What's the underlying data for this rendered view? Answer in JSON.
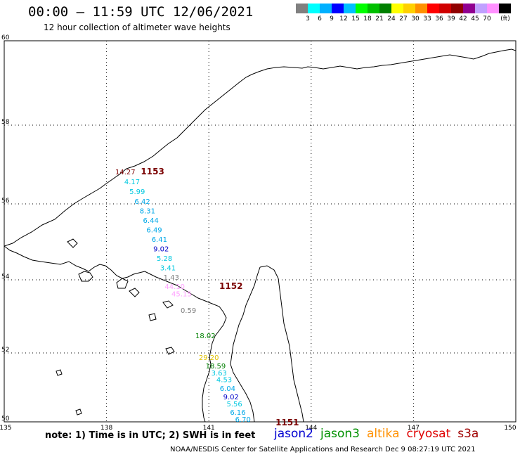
{
  "header": {
    "title": "00:00 – 11:59 UTC 12/06/2021",
    "subtitle": "12 hour collection of altimeter wave heights"
  },
  "scale": {
    "unit": "(ft)",
    "bins": [
      {
        "label": "",
        "color": "#808080"
      },
      {
        "label": "3",
        "color": "#00ffff"
      },
      {
        "label": "6",
        "color": "#00b0ff"
      },
      {
        "label": "9",
        "color": "#0000ff"
      },
      {
        "label": "12",
        "color": "#00bfff"
      },
      {
        "label": "15",
        "color": "#00ff00"
      },
      {
        "label": "18",
        "color": "#00c000"
      },
      {
        "label": "21",
        "color": "#008000"
      },
      {
        "label": "24",
        "color": "#ffff00"
      },
      {
        "label": "27",
        "color": "#ffd000"
      },
      {
        "label": "30",
        "color": "#ff9000"
      },
      {
        "label": "33",
        "color": "#ff0000"
      },
      {
        "label": "36",
        "color": "#d00000"
      },
      {
        "label": "39",
        "color": "#900000"
      },
      {
        "label": "42",
        "color": "#900090"
      },
      {
        "label": "45",
        "color": "#c0a0ff"
      },
      {
        "label": "70",
        "color": "#ff90ff"
      },
      {
        "label": "",
        "color": "#000000"
      }
    ]
  },
  "map": {
    "lon_ticks": [
      "135",
      "138",
      "141",
      "144",
      "147",
      "150"
    ],
    "lat_ticks": [
      "50",
      "52",
      "54",
      "56",
      "58",
      "60"
    ],
    "pass_labels": [
      {
        "text": "1153",
        "lon": 139.35,
        "lat": 56.75
      },
      {
        "text": "1152",
        "lon": 141.65,
        "lat": 53.75
      },
      {
        "text": "1151",
        "lon": 143.3,
        "lat": 49.9
      }
    ],
    "observations": [
      {
        "value": "14.27",
        "lon": 138.55,
        "lat": 56.75,
        "color": "#7a0000"
      },
      {
        "value": "4.17",
        "lon": 138.75,
        "lat": 56.5,
        "color": "#00c8e0"
      },
      {
        "value": "5.99",
        "lon": 138.9,
        "lat": 56.25,
        "color": "#00c8e0"
      },
      {
        "value": "6.42",
        "lon": 139.05,
        "lat": 56.0,
        "color": "#00a8e8"
      },
      {
        "value": "8.31",
        "lon": 139.2,
        "lat": 55.75,
        "color": "#00a8e8"
      },
      {
        "value": "6.44",
        "lon": 139.3,
        "lat": 55.5,
        "color": "#00a8e8"
      },
      {
        "value": "6.49",
        "lon": 139.4,
        "lat": 55.25,
        "color": "#00a8e8"
      },
      {
        "value": "6.41",
        "lon": 139.55,
        "lat": 55.0,
        "color": "#00a8e8"
      },
      {
        "value": "9.02",
        "lon": 139.6,
        "lat": 54.75,
        "color": "#0000c8"
      },
      {
        "value": "5.28",
        "lon": 139.7,
        "lat": 54.5,
        "color": "#00c8e0"
      },
      {
        "value": "3.41",
        "lon": 139.8,
        "lat": 54.25,
        "color": "#00c8e0"
      },
      {
        "value": "1.43",
        "lon": 139.9,
        "lat": 54.0,
        "color": "#808080"
      },
      {
        "value": "44.10",
        "lon": 140.0,
        "lat": 53.75,
        "color": "#ffa0ff"
      },
      {
        "value": "45.15",
        "lon": 140.2,
        "lat": 53.55,
        "color": "#ffa0ff"
      },
      {
        "value": "0.59",
        "lon": 140.4,
        "lat": 53.1,
        "color": "#808080"
      },
      {
        "value": "18.02",
        "lon": 140.9,
        "lat": 52.4,
        "color": "#008000"
      },
      {
        "value": "29.20",
        "lon": 141.0,
        "lat": 51.8,
        "color": "#e0c000"
      },
      {
        "value": "18.59",
        "lon": 141.2,
        "lat": 51.55,
        "color": "#008000"
      },
      {
        "value": "3.63",
        "lon": 141.3,
        "lat": 51.35,
        "color": "#00c8e0"
      },
      {
        "value": "4.53",
        "lon": 141.45,
        "lat": 51.15,
        "color": "#00c8e0"
      },
      {
        "value": "6.04",
        "lon": 141.55,
        "lat": 50.9,
        "color": "#00a8e8"
      },
      {
        "value": "9.02",
        "lon": 141.65,
        "lat": 50.65,
        "color": "#0000c8"
      },
      {
        "value": "5.56",
        "lon": 141.75,
        "lat": 50.45,
        "color": "#00c8e0"
      },
      {
        "value": "6.16",
        "lon": 141.85,
        "lat": 50.2,
        "color": "#00a8e8"
      },
      {
        "value": "6.70",
        "lon": 142.0,
        "lat": 50.0,
        "color": "#00a8e8"
      }
    ]
  },
  "footer": {
    "note": "note:  1) Time is in UTC;  2) SWH is in feet",
    "satellites": [
      {
        "name": "jason2",
        "color": "#0000d0"
      },
      {
        "name": "jason3",
        "color": "#009000"
      },
      {
        "name": "altika",
        "color": "#ff9000"
      },
      {
        "name": "cryosat",
        "color": "#e00000"
      },
      {
        "name": "s3a",
        "color": "#a00000"
      }
    ],
    "credit": "NOAA/NESDIS Center for Satellite Applications and Research     Dec  9 08:27:19 UTC 2021"
  }
}
